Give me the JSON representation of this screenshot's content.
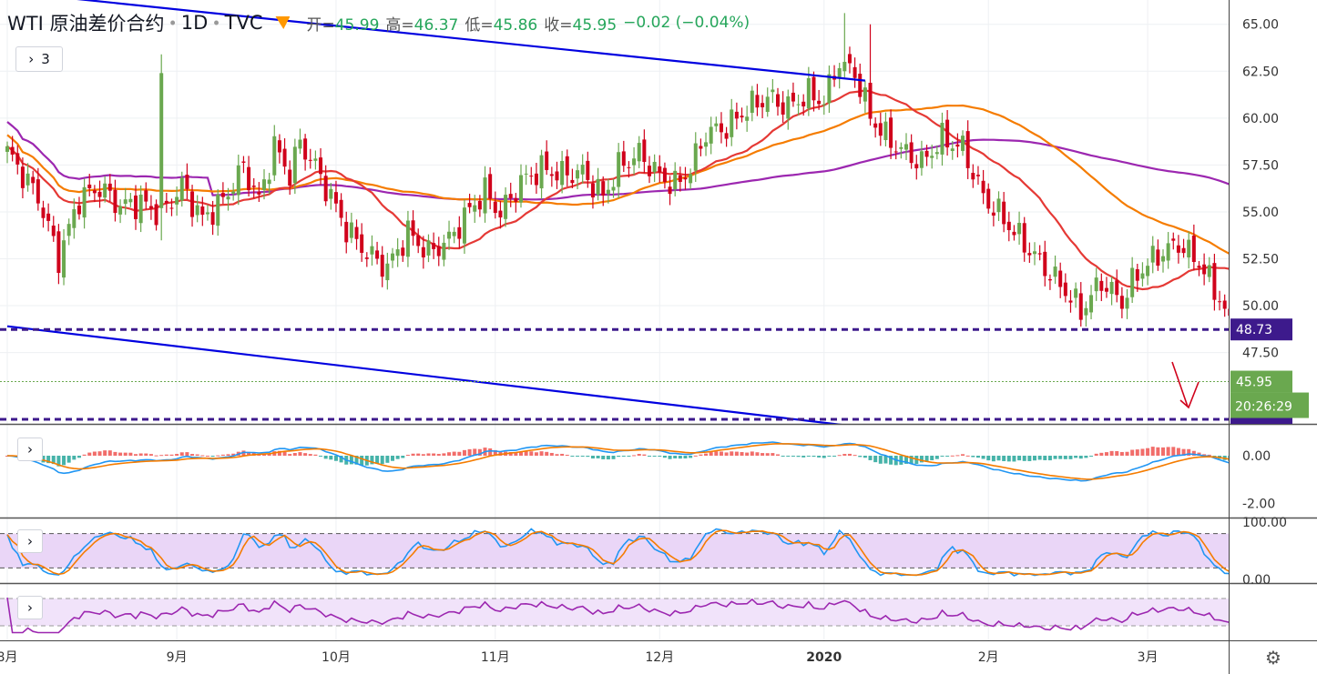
{
  "header": {
    "symbol": "WTI 原油差价合约",
    "interval": "1D",
    "source": "TVC",
    "ohlc": [
      {
        "label": "开",
        "value": "45.99"
      },
      {
        "label": "高",
        "value": "46.37"
      },
      {
        "label": "低",
        "value": "45.86"
      },
      {
        "label": "收",
        "value": "45.95"
      }
    ],
    "change": "−0.02 (−0.04%)",
    "indicators_toggle": "3"
  },
  "colors": {
    "up": "#6aa84f",
    "down": "#d0021b",
    "trendline": "#0000e0",
    "hline": "#3d1a8c",
    "ma_orange": "#f57c00",
    "ma_red": "#e53935",
    "ma_purple": "#9c27b0",
    "macd_blue": "#2196f3",
    "macd_orange": "#f57c00",
    "hist_green": "#26a69a",
    "hist_red": "#ef5350",
    "price_label_green": "#6aa84f"
  },
  "chart_data": {
    "type": "candlestick",
    "price_axis": {
      "ticks": [
        "65.00",
        "62.50",
        "60.00",
        "57.50",
        "55.00",
        "52.50",
        "50.00",
        "47.50"
      ],
      "range": [
        43.6,
        66.2
      ]
    },
    "time_axis": {
      "ticks": [
        "8月",
        "9月",
        "10月",
        "11月",
        "12月",
        "2020",
        "2月",
        "3月"
      ]
    },
    "last_price": {
      "value": "45.95",
      "countdown": "20:26:29"
    },
    "horizontal_levels": [
      {
        "value": "48.73"
      },
      {
        "value": "43.94"
      }
    ],
    "trendlines": [
      {
        "from": [
          "2019-07-02",
          67.3
        ],
        "to": [
          "2020-03-29",
          62.0
        ]
      },
      {
        "from": [
          "2019-07-31",
          48.9
        ],
        "to": [
          "2020-03-29",
          43.5
        ]
      }
    ],
    "annotations": [
      {
        "type": "arrow",
        "direction": "down",
        "color": "#d0021b"
      }
    ],
    "panes": [
      {
        "name": "MACD",
        "ticks": [
          "0.00",
          "-2.00"
        ],
        "range": [
          -2.6,
          1.3
        ]
      },
      {
        "name": "Stochastic",
        "ticks": [
          "100.00",
          "0.00"
        ],
        "bands": [
          80,
          20
        ]
      },
      {
        "name": "Oscillator",
        "bands": [
          80,
          20
        ]
      }
    ]
  }
}
